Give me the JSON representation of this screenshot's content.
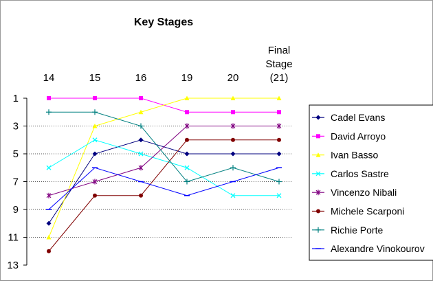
{
  "chart_data": {
    "type": "line",
    "title": "Key Stages",
    "categories": [
      "14",
      "15",
      "16",
      "19",
      "20",
      "Final\nStage\n(21)"
    ],
    "y_tick_labels": [
      "1",
      "3",
      "5",
      "7",
      "9",
      "11",
      "13"
    ],
    "ylim": [
      1,
      13
    ],
    "y_inverted": true,
    "grid": "horizontal dotted",
    "legend_placement": "right",
    "series": [
      {
        "name": "Cadel Evans",
        "color": "#00007f",
        "marker": "diamond",
        "values": [
          10,
          5,
          4,
          5,
          5,
          5
        ]
      },
      {
        "name": "David Arroyo",
        "color": "#ff00ff",
        "marker": "square",
        "values": [
          1,
          1,
          1,
          2,
          2,
          2
        ]
      },
      {
        "name": "Ivan Basso",
        "color": "#ffff00",
        "marker": "triangle",
        "values": [
          11,
          3,
          2,
          1,
          1,
          1
        ]
      },
      {
        "name": "Carlos Sastre",
        "color": "#00ffff",
        "marker": "x",
        "values": [
          6,
          4,
          5,
          6,
          8,
          8
        ]
      },
      {
        "name": "Vincenzo Nibali",
        "color": "#800080",
        "marker": "star",
        "values": [
          8,
          7,
          6,
          3,
          3,
          3
        ]
      },
      {
        "name": "Michele Scarponi",
        "color": "#800000",
        "marker": "circle",
        "values": [
          12,
          8,
          8,
          4,
          4,
          4
        ]
      },
      {
        "name": "Richie Porte",
        "color": "#008080",
        "marker": "plus",
        "values": [
          2,
          2,
          3,
          7,
          6,
          7
        ]
      },
      {
        "name": "Alexandre Vinokourov",
        "color": "#0000ff",
        "marker": "dash",
        "values": [
          9,
          6,
          7,
          8,
          7,
          6
        ]
      }
    ]
  }
}
